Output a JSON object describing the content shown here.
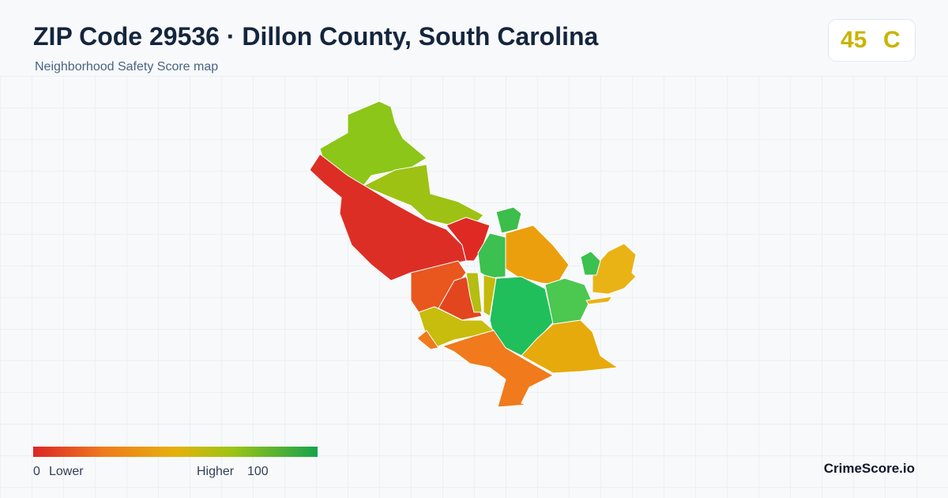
{
  "header": {
    "title": "ZIP Code 29536 · Dillon County, South Carolina",
    "subtitle": "Neighborhood Safety Score map"
  },
  "score": {
    "value": 45,
    "grade": "C"
  },
  "legend": {
    "min": 0,
    "min_label": "Lower",
    "max_label": "Higher",
    "max": 100
  },
  "brand": "CrimeScore.io"
}
